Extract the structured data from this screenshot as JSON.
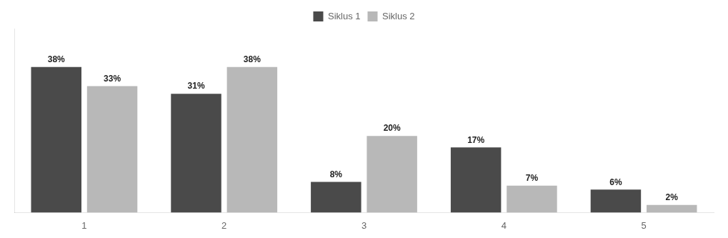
{
  "chart_data": {
    "type": "bar",
    "categories": [
      "1",
      "2",
      "3",
      "4",
      "5"
    ],
    "series": [
      {
        "name": "Siklus 1",
        "color": "#4a4a4a",
        "values": [
          38,
          31,
          8,
          17,
          6
        ],
        "value_labels": [
          "38%",
          "31%",
          "8%",
          "17%",
          "6%"
        ]
      },
      {
        "name": "Siklus 2",
        "color": "#b8b8b8",
        "values": [
          33,
          38,
          20,
          7,
          2
        ],
        "value_labels": [
          "33%",
          "38%",
          "20%",
          "7%",
          "2%"
        ]
      }
    ],
    "ylim": [
      0,
      48
    ],
    "grid": false,
    "legend": "top",
    "data_labels": true,
    "tick_labels": "x"
  }
}
